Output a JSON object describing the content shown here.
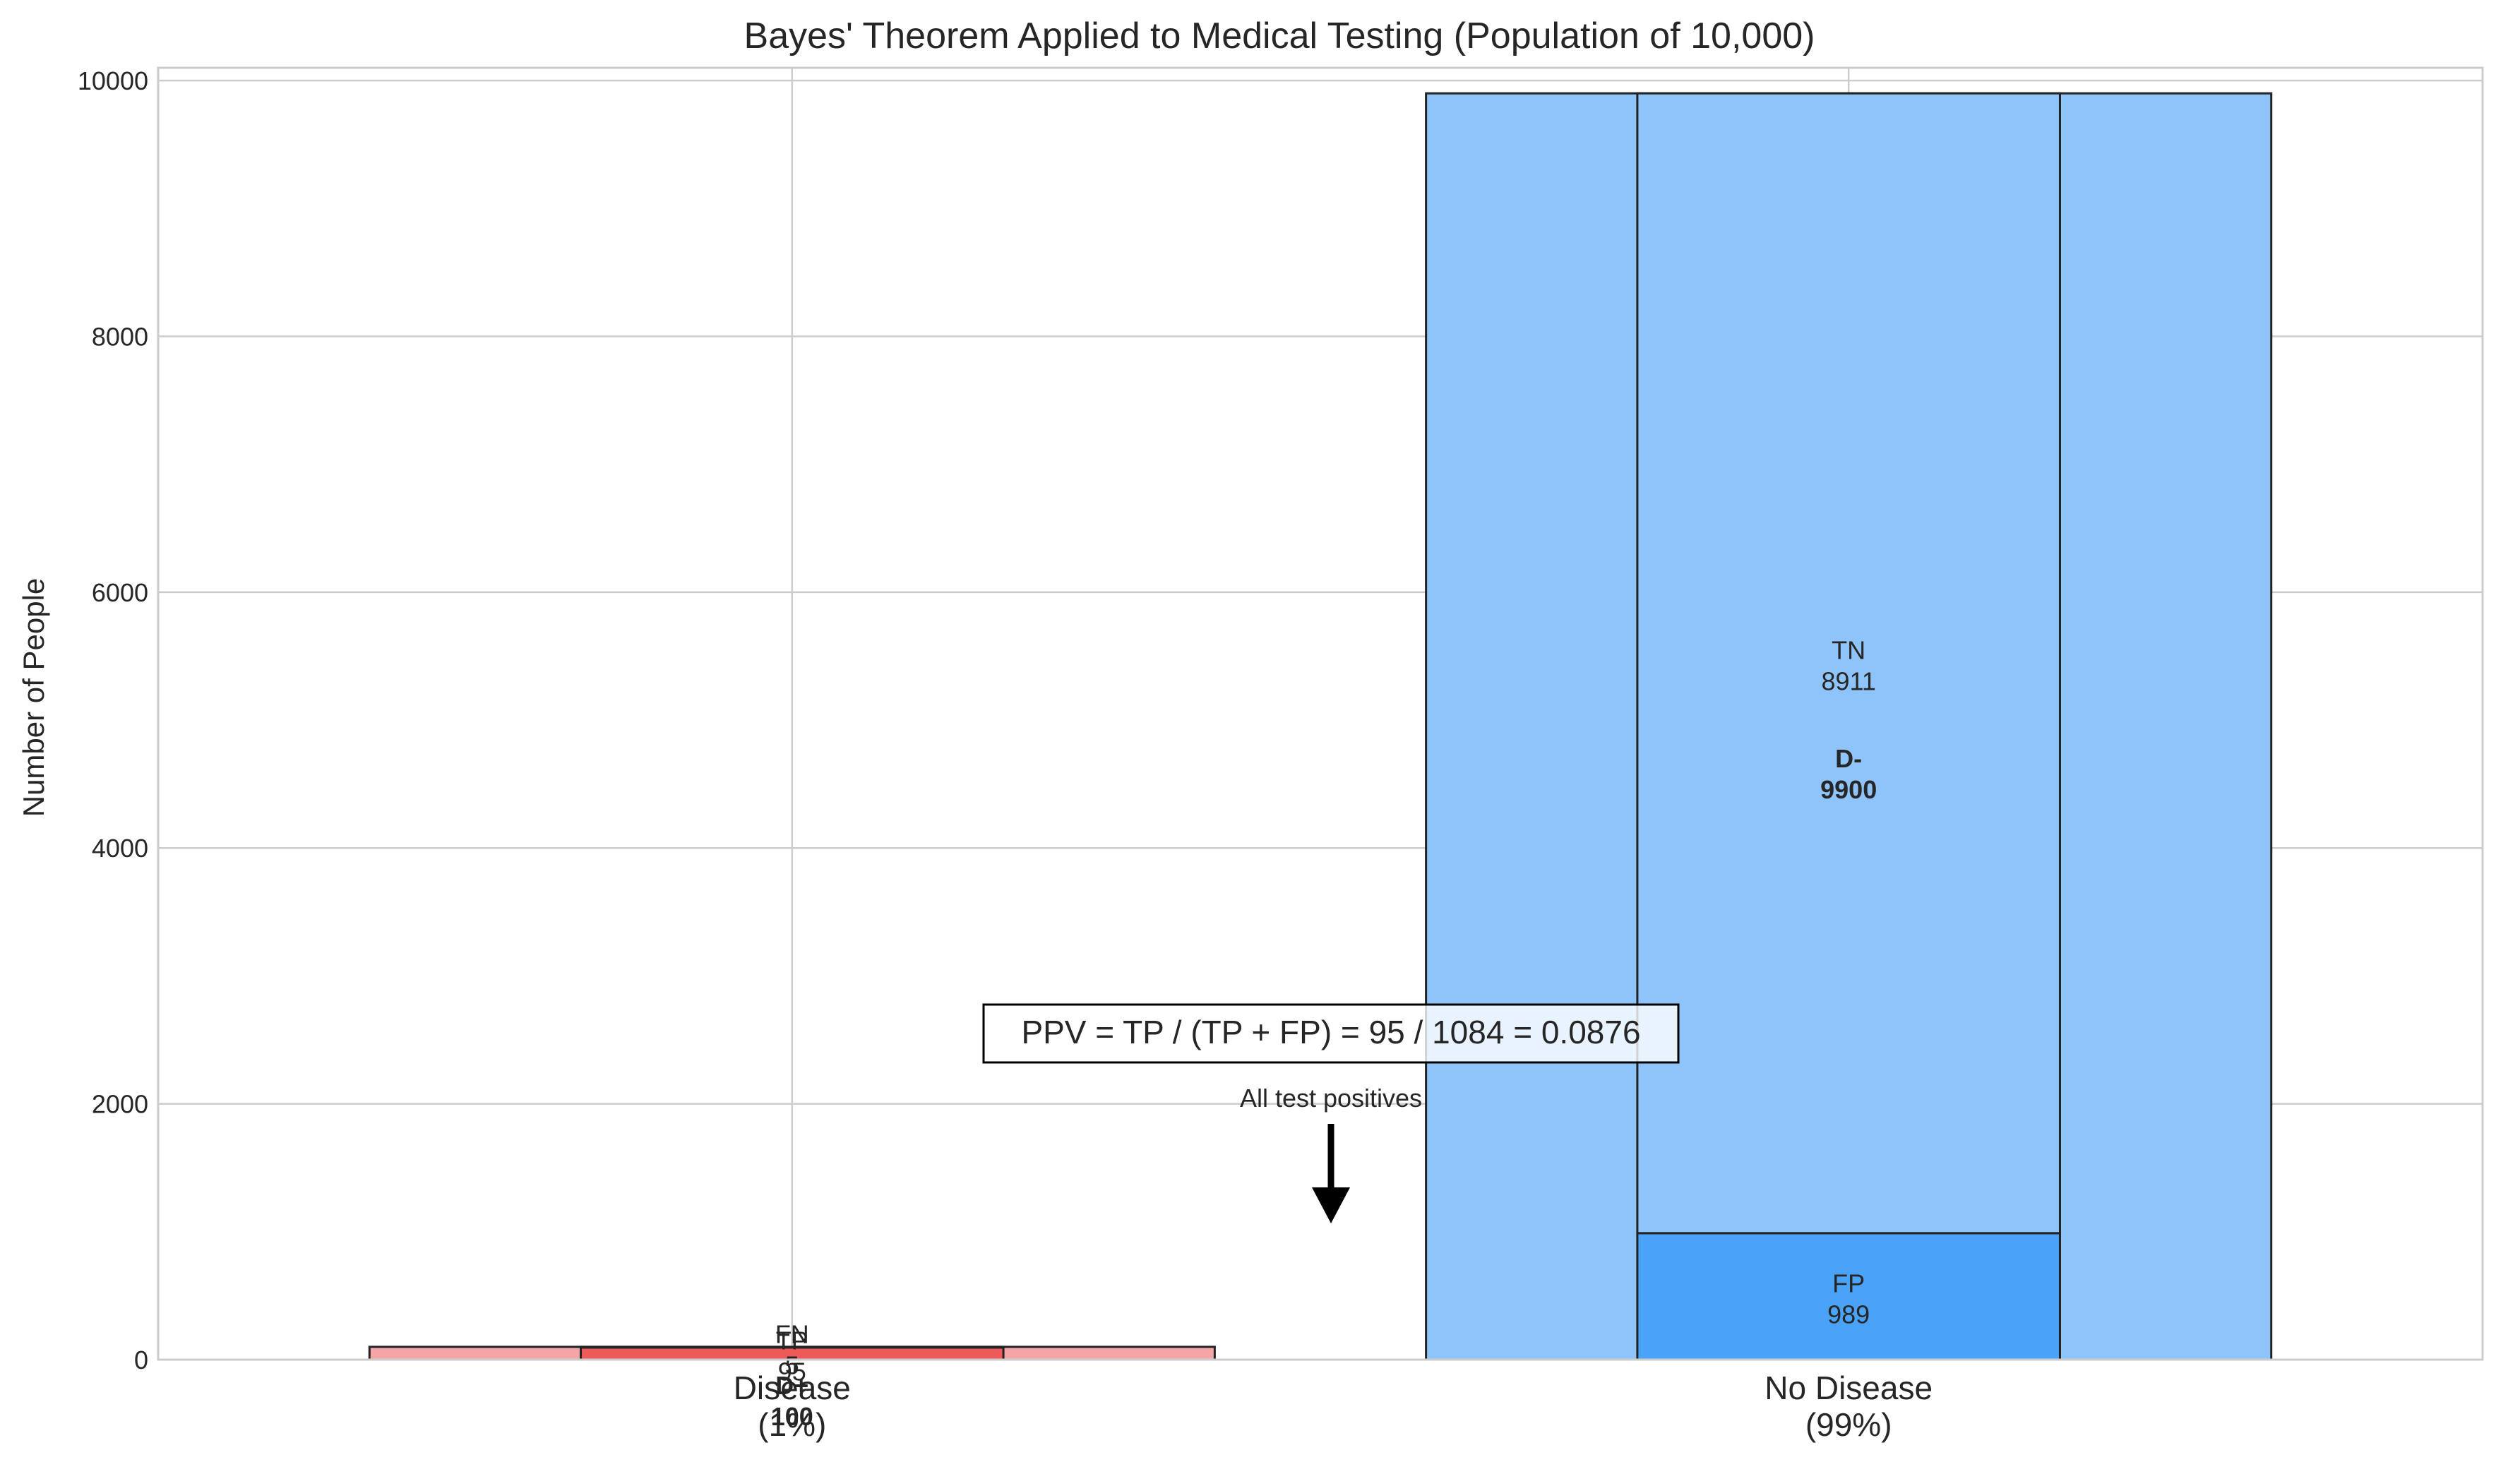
{
  "chart_data": {
    "type": "bar",
    "title": "Bayes' Theorem Applied to Medical Testing (Population of 10,000)",
    "ylabel": "Number of People",
    "xlabel": "",
    "ylim": [
      0,
      10100
    ],
    "yticks": [
      0,
      2000,
      4000,
      6000,
      8000,
      10000
    ],
    "grid": true,
    "categories": [
      {
        "line1": "Disease",
        "line2": "(1%)"
      },
      {
        "line1": "No Disease",
        "line2": "(99%)"
      }
    ],
    "groups": [
      {
        "outer": {
          "label": "D+",
          "value": 100,
          "color": "#f4a6a6"
        },
        "positive": {
          "label": "TP",
          "value": 95,
          "color": "#ee5a5a"
        },
        "negative": {
          "label": "FN",
          "value": 5,
          "color": "#f4a6a6"
        }
      },
      {
        "outer": {
          "label": "D-",
          "value": 9900,
          "color": "#8fc4fb"
        },
        "positive": {
          "label": "FP",
          "value": 989,
          "color": "#4ba3f7"
        },
        "negative": {
          "label": "TN",
          "value": 8911,
          "color": "#8fc4fb"
        }
      }
    ],
    "annotations": {
      "formula": "PPV = TP / (TP + FP) = 95 / 1084 = 0.0876",
      "arrow_label": "All test positives"
    }
  }
}
